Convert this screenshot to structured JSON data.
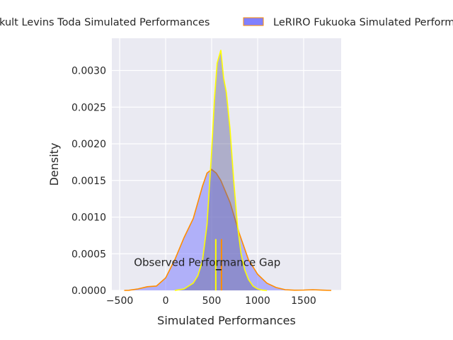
{
  "chart_data": {
    "type": "area",
    "title": "",
    "xlabel": "Simulated Performances",
    "ylabel": "Density",
    "xlim": [
      -585,
      1908
    ],
    "ylim": [
      0,
      0.00344
    ],
    "xticks": [
      -500,
      0,
      500,
      1000,
      1500
    ],
    "xtick_labels": [
      "−500",
      "0",
      "500",
      "1000",
      "1500"
    ],
    "yticks": [
      0,
      0.0005,
      0.001,
      0.0015,
      0.002,
      0.0025,
      0.003
    ],
    "ytick_labels": [
      "0.0000",
      "0.0005",
      "0.0010",
      "0.0015",
      "0.0020",
      "0.0025",
      "0.0030"
    ],
    "grid": true,
    "legend_placement": "top, outside plot",
    "series": [
      {
        "name": "kult Levins Toda Simulated Performances",
        "fill": "#8080ff",
        "edge": "#ff8c00",
        "x": [
          -450,
          -400,
          -300,
          -200,
          -100,
          0,
          100,
          200,
          300,
          400,
          450,
          500,
          550,
          600,
          700,
          800,
          900,
          1000,
          1100,
          1200,
          1300,
          1400,
          1500,
          1600,
          1700,
          1800
        ],
        "y": [
          0,
          2e-06,
          2e-05,
          5e-05,
          6e-05,
          0.00017,
          0.00042,
          0.00072,
          0.00098,
          0.00142,
          0.0016,
          0.00165,
          0.0016,
          0.0015,
          0.0012,
          0.00078,
          0.00042,
          0.00022,
          0.0001,
          4e-05,
          1e-05,
          3e-06,
          5e-06,
          1e-05,
          4e-06,
          0
        ]
      },
      {
        "name": "LeRIRO Fukuoka Simulated Performances",
        "fill": "#66669a",
        "edge": "#ffff00",
        "x": [
          100,
          200,
          300,
          350,
          400,
          450,
          500,
          530,
          560,
          600,
          630,
          660,
          700,
          740,
          780,
          820,
          860,
          900,
          950,
          1000,
          1050,
          1100
        ],
        "y": [
          0,
          2e-05,
          0.0001,
          0.0002,
          0.0004,
          0.0009,
          0.0019,
          0.0026,
          0.0031,
          0.00328,
          0.0029,
          0.0027,
          0.0022,
          0.0015,
          0.0009,
          0.0005,
          0.00028,
          0.00015,
          6e-05,
          2e-05,
          5e-06,
          0
        ]
      }
    ],
    "markers": [
      {
        "name": "yellow-observed-line",
        "x": 545,
        "y": [
          0,
          0.0007
        ],
        "color": "#ffff00"
      },
      {
        "name": "orange-observed-line",
        "x": 607,
        "y": [
          0,
          0.0007
        ],
        "color": "#ff8c00"
      }
    ],
    "gap_bar": {
      "x": [
        545,
        607
      ],
      "y": 0.00036
    },
    "annotation": {
      "text": "Observed Performance Gap",
      "x": 575,
      "y": 0.00036
    }
  }
}
